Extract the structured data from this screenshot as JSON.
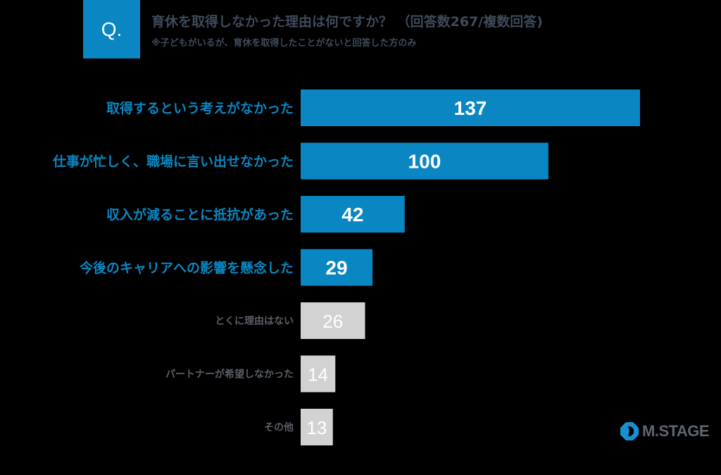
{
  "header": {
    "q_label": "Q.",
    "title": "育休を取得しなかった理由は何ですか？ （回答数267/複数回答)",
    "subtitle": "※子どもがいるが、育休を取得したことがないと回答した方のみ"
  },
  "chart_data": {
    "type": "bar",
    "orientation": "horizontal",
    "categories": [
      "取得するという考えがなかった",
      "仕事が忙しく、職場に言い出せなかった",
      "収入が減ることに抵抗があった",
      "今後のキャリアへの影響を懸念した",
      "とくに理由はない",
      "パートナーが希望しなかった",
      "その他"
    ],
    "values": [
      137,
      100,
      42,
      29,
      26,
      14,
      13
    ],
    "highlighted": [
      true,
      true,
      true,
      true,
      false,
      false,
      false
    ],
    "xlim": [
      0,
      137
    ],
    "grid": false,
    "colors": {
      "highlight": "#0a86c2",
      "normal": "#d2d2d2",
      "highlight_label": "#0a86c2",
      "normal_label": "#5a5f66"
    }
  },
  "logo": {
    "text": "M.STAGE",
    "colors": {
      "blue": "#1a8fd0",
      "gray": "#5f6670"
    }
  }
}
